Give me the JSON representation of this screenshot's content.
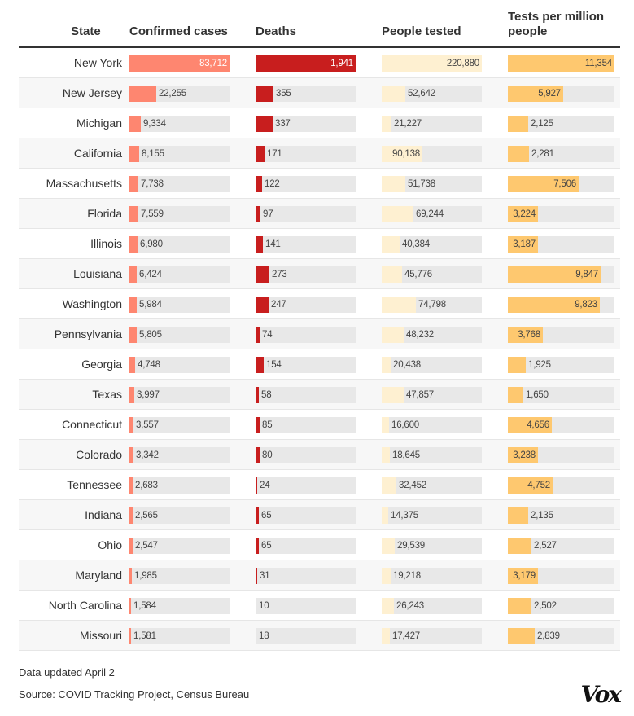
{
  "headers": {
    "state": "State",
    "cases": "Confirmed cases",
    "deaths": "Deaths",
    "tested": "People tested",
    "per_million": "Tests per million people"
  },
  "colors": {
    "cases": "#fe8670",
    "deaths": "#c81e1e",
    "tested": "#fef0d1",
    "per_million": "#fec86f",
    "track": "#e8e8e8"
  },
  "chart_data": {
    "type": "table",
    "title": "",
    "columns": [
      "State",
      "Confirmed cases",
      "Deaths",
      "People tested",
      "Tests per million people"
    ],
    "rows": [
      {
        "state": "New York",
        "cases": 83712,
        "deaths": 1941,
        "tested": 220880,
        "per_million": 11354
      },
      {
        "state": "New Jersey",
        "cases": 22255,
        "deaths": 355,
        "tested": 52642,
        "per_million": 5927
      },
      {
        "state": "Michigan",
        "cases": 9334,
        "deaths": 337,
        "tested": 21227,
        "per_million": 2125
      },
      {
        "state": "California",
        "cases": 8155,
        "deaths": 171,
        "tested": 90138,
        "per_million": 2281
      },
      {
        "state": "Massachusetts",
        "cases": 7738,
        "deaths": 122,
        "tested": 51738,
        "per_million": 7506
      },
      {
        "state": "Florida",
        "cases": 7559,
        "deaths": 97,
        "tested": 69244,
        "per_million": 3224
      },
      {
        "state": "Illinois",
        "cases": 6980,
        "deaths": 141,
        "tested": 40384,
        "per_million": 3187
      },
      {
        "state": "Louisiana",
        "cases": 6424,
        "deaths": 273,
        "tested": 45776,
        "per_million": 9847
      },
      {
        "state": "Washington",
        "cases": 5984,
        "deaths": 247,
        "tested": 74798,
        "per_million": 9823
      },
      {
        "state": "Pennsylvania",
        "cases": 5805,
        "deaths": 74,
        "tested": 48232,
        "per_million": 3768
      },
      {
        "state": "Georgia",
        "cases": 4748,
        "deaths": 154,
        "tested": 20438,
        "per_million": 1925
      },
      {
        "state": "Texas",
        "cases": 3997,
        "deaths": 58,
        "tested": 47857,
        "per_million": 1650
      },
      {
        "state": "Connecticut",
        "cases": 3557,
        "deaths": 85,
        "tested": 16600,
        "per_million": 4656
      },
      {
        "state": "Colorado",
        "cases": 3342,
        "deaths": 80,
        "tested": 18645,
        "per_million": 3238
      },
      {
        "state": "Tennessee",
        "cases": 2683,
        "deaths": 24,
        "tested": 32452,
        "per_million": 4752
      },
      {
        "state": "Indiana",
        "cases": 2565,
        "deaths": 65,
        "tested": 14375,
        "per_million": 2135
      },
      {
        "state": "Ohio",
        "cases": 2547,
        "deaths": 65,
        "tested": 29539,
        "per_million": 2527
      },
      {
        "state": "Maryland",
        "cases": 1985,
        "deaths": 31,
        "tested": 19218,
        "per_million": 3179
      },
      {
        "state": "North Carolina",
        "cases": 1584,
        "deaths": 10,
        "tested": 26243,
        "per_million": 2502
      },
      {
        "state": "Missouri",
        "cases": 1581,
        "deaths": 18,
        "tested": 17427,
        "per_million": 2839
      }
    ],
    "max": {
      "cases": 83712,
      "deaths": 1941,
      "tested": 220880,
      "per_million": 11354
    }
  },
  "footer": {
    "updated": "Data updated April 2",
    "source": "Source: COVID Tracking Project, Census Bureau",
    "logo": "Vox"
  }
}
